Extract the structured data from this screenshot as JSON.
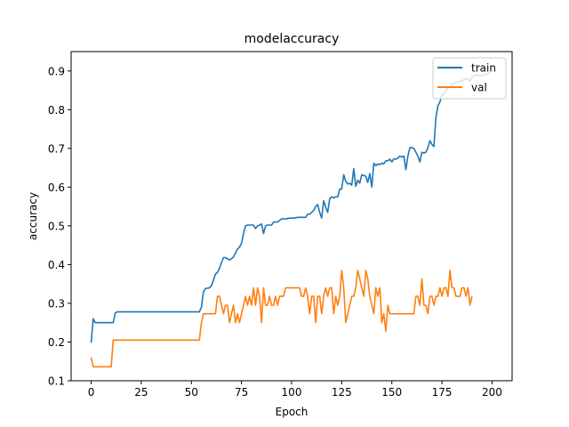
{
  "chart_data": {
    "type": "line",
    "title": "modelaccuracy",
    "xlabel": "Epoch",
    "ylabel": "accuracy",
    "xlim": [
      -10,
      210
    ],
    "ylim": [
      0.1,
      0.95
    ],
    "xticks": [
      0,
      25,
      50,
      75,
      100,
      125,
      150,
      175,
      200
    ],
    "yticks": [
      0.1,
      0.2,
      0.3,
      0.4,
      0.5,
      0.6,
      0.7,
      0.8,
      0.9
    ],
    "grid": false,
    "legend": "upper right",
    "series": [
      {
        "name": "train",
        "color": "#1f77b4",
        "points": [
          [
            0,
            0.198
          ],
          [
            1,
            0.26
          ],
          [
            2,
            0.25
          ],
          [
            5,
            0.25
          ],
          [
            10,
            0.25
          ],
          [
            11,
            0.25
          ],
          [
            12,
            0.275
          ],
          [
            13,
            0.278
          ],
          [
            20,
            0.278
          ],
          [
            30,
            0.278
          ],
          [
            40,
            0.278
          ],
          [
            50,
            0.278
          ],
          [
            54,
            0.278
          ],
          [
            55,
            0.29
          ],
          [
            56,
            0.33
          ],
          [
            57,
            0.338
          ],
          [
            59,
            0.34
          ],
          [
            60,
            0.345
          ],
          [
            61,
            0.36
          ],
          [
            62,
            0.375
          ],
          [
            63,
            0.38
          ],
          [
            64,
            0.39
          ],
          [
            65,
            0.405
          ],
          [
            66,
            0.418
          ],
          [
            67,
            0.418
          ],
          [
            68,
            0.415
          ],
          [
            69,
            0.412
          ],
          [
            70,
            0.415
          ],
          [
            71,
            0.42
          ],
          [
            72,
            0.43
          ],
          [
            73,
            0.44
          ],
          [
            74,
            0.445
          ],
          [
            75,
            0.455
          ],
          [
            76,
            0.48
          ],
          [
            77,
            0.5
          ],
          [
            78,
            0.502
          ],
          [
            80,
            0.502
          ],
          [
            81,
            0.502
          ],
          [
            82,
            0.493
          ],
          [
            83,
            0.5
          ],
          [
            84,
            0.502
          ],
          [
            85,
            0.505
          ],
          [
            86,
            0.48
          ],
          [
            87,
            0.5
          ],
          [
            88,
            0.502
          ],
          [
            90,
            0.502
          ],
          [
            91,
            0.51
          ],
          [
            93,
            0.51
          ],
          [
            95,
            0.518
          ],
          [
            97,
            0.518
          ],
          [
            99,
            0.52
          ],
          [
            101,
            0.52
          ],
          [
            103,
            0.522
          ],
          [
            105,
            0.522
          ],
          [
            107,
            0.522
          ],
          [
            108,
            0.53
          ],
          [
            109,
            0.53
          ],
          [
            110,
            0.535
          ],
          [
            111,
            0.54
          ],
          [
            112,
            0.55
          ],
          [
            113,
            0.555
          ],
          [
            114,
            0.535
          ],
          [
            115,
            0.52
          ],
          [
            116,
            0.565
          ],
          [
            117,
            0.548
          ],
          [
            118,
            0.535
          ],
          [
            119,
            0.57
          ],
          [
            120,
            0.575
          ],
          [
            121,
            0.572
          ],
          [
            122,
            0.575
          ],
          [
            123,
            0.575
          ],
          [
            124,
            0.595
          ],
          [
            125,
            0.595
          ],
          [
            126,
            0.632
          ],
          [
            127,
            0.615
          ],
          [
            128,
            0.608
          ],
          [
            129,
            0.61
          ],
          [
            130,
            0.605
          ],
          [
            131,
            0.648
          ],
          [
            132,
            0.602
          ],
          [
            133,
            0.618
          ],
          [
            134,
            0.61
          ],
          [
            135,
            0.632
          ],
          [
            136,
            0.63
          ],
          [
            137,
            0.628
          ],
          [
            138,
            0.612
          ],
          [
            139,
            0.635
          ],
          [
            140,
            0.6
          ],
          [
            141,
            0.662
          ],
          [
            142,
            0.655
          ],
          [
            143,
            0.66
          ],
          [
            144,
            0.658
          ],
          [
            145,
            0.662
          ],
          [
            146,
            0.66
          ],
          [
            147,
            0.668
          ],
          [
            148,
            0.668
          ],
          [
            149,
            0.672
          ],
          [
            150,
            0.665
          ],
          [
            151,
            0.673
          ],
          [
            152,
            0.672
          ],
          [
            153,
            0.675
          ],
          [
            154,
            0.68
          ],
          [
            155,
            0.678
          ],
          [
            156,
            0.68
          ],
          [
            157,
            0.645
          ],
          [
            158,
            0.68
          ],
          [
            159,
            0.702
          ],
          [
            160,
            0.702
          ],
          [
            161,
            0.7
          ],
          [
            162,
            0.69
          ],
          [
            163,
            0.68
          ],
          [
            164,
            0.665
          ],
          [
            165,
            0.69
          ],
          [
            166,
            0.688
          ],
          [
            167,
            0.69
          ],
          [
            168,
            0.702
          ],
          [
            169,
            0.72
          ],
          [
            170,
            0.71
          ],
          [
            171,
            0.705
          ],
          [
            172,
            0.78
          ],
          [
            173,
            0.81
          ],
          [
            174,
            0.82
          ],
          [
            175,
            0.84
          ],
          [
            176,
            0.84
          ],
          [
            177,
            0.85
          ],
          [
            178,
            0.858
          ],
          [
            179,
            0.86
          ],
          [
            180,
            0.865
          ],
          [
            182,
            0.87
          ],
          [
            185,
            0.875
          ],
          [
            187,
            0.88
          ],
          [
            188,
            0.88
          ],
          [
            189,
            0.873
          ],
          [
            190,
            0.885
          ],
          [
            192,
            0.89
          ],
          [
            195,
            0.888
          ],
          [
            199,
            0.895
          ]
        ]
      },
      {
        "name": "val",
        "color": "#ff7f0e",
        "points": [
          [
            0,
            0.16
          ],
          [
            1,
            0.136
          ],
          [
            2,
            0.136
          ],
          [
            5,
            0.136
          ],
          [
            10,
            0.136
          ],
          [
            11,
            0.205
          ],
          [
            15,
            0.205
          ],
          [
            20,
            0.205
          ],
          [
            30,
            0.205
          ],
          [
            40,
            0.205
          ],
          [
            50,
            0.205
          ],
          [
            54,
            0.205
          ],
          [
            55,
            0.25
          ],
          [
            56,
            0.273
          ],
          [
            58,
            0.273
          ],
          [
            60,
            0.273
          ],
          [
            62,
            0.273
          ],
          [
            63,
            0.318
          ],
          [
            64,
            0.318
          ],
          [
            65,
            0.295
          ],
          [
            66,
            0.273
          ],
          [
            67,
            0.295
          ],
          [
            68,
            0.295
          ],
          [
            69,
            0.25
          ],
          [
            70,
            0.273
          ],
          [
            71,
            0.295
          ],
          [
            72,
            0.25
          ],
          [
            73,
            0.273
          ],
          [
            74,
            0.25
          ],
          [
            75,
            0.273
          ],
          [
            76,
            0.295
          ],
          [
            77,
            0.318
          ],
          [
            78,
            0.295
          ],
          [
            79,
            0.318
          ],
          [
            80,
            0.295
          ],
          [
            81,
            0.34
          ],
          [
            82,
            0.295
          ],
          [
            83,
            0.34
          ],
          [
            84,
            0.318
          ],
          [
            85,
            0.25
          ],
          [
            86,
            0.34
          ],
          [
            87,
            0.295
          ],
          [
            88,
            0.295
          ],
          [
            89,
            0.318
          ],
          [
            90,
            0.295
          ],
          [
            91,
            0.295
          ],
          [
            92,
            0.318
          ],
          [
            93,
            0.295
          ],
          [
            94,
            0.318
          ],
          [
            95,
            0.318
          ],
          [
            96,
            0.318
          ],
          [
            97,
            0.34
          ],
          [
            98,
            0.34
          ],
          [
            100,
            0.34
          ],
          [
            102,
            0.34
          ],
          [
            104,
            0.34
          ],
          [
            105,
            0.318
          ],
          [
            106,
            0.318
          ],
          [
            107,
            0.34
          ],
          [
            108,
            0.318
          ],
          [
            109,
            0.273
          ],
          [
            110,
            0.318
          ],
          [
            111,
            0.318
          ],
          [
            112,
            0.25
          ],
          [
            113,
            0.318
          ],
          [
            114,
            0.318
          ],
          [
            115,
            0.273
          ],
          [
            116,
            0.318
          ],
          [
            117,
            0.34
          ],
          [
            118,
            0.318
          ],
          [
            119,
            0.34
          ],
          [
            120,
            0.34
          ],
          [
            121,
            0.273
          ],
          [
            122,
            0.318
          ],
          [
            123,
            0.295
          ],
          [
            124,
            0.318
          ],
          [
            125,
            0.385
          ],
          [
            126,
            0.34
          ],
          [
            127,
            0.25
          ],
          [
            128,
            0.273
          ],
          [
            129,
            0.295
          ],
          [
            130,
            0.318
          ],
          [
            131,
            0.318
          ],
          [
            132,
            0.34
          ],
          [
            133,
            0.385
          ],
          [
            134,
            0.363
          ],
          [
            135,
            0.34
          ],
          [
            136,
            0.318
          ],
          [
            137,
            0.385
          ],
          [
            138,
            0.363
          ],
          [
            139,
            0.318
          ],
          [
            140,
            0.295
          ],
          [
            141,
            0.273
          ],
          [
            142,
            0.34
          ],
          [
            143,
            0.318
          ],
          [
            144,
            0.34
          ],
          [
            145,
            0.25
          ],
          [
            146,
            0.273
          ],
          [
            147,
            0.228
          ],
          [
            148,
            0.295
          ],
          [
            149,
            0.273
          ],
          [
            150,
            0.273
          ],
          [
            155,
            0.273
          ],
          [
            160,
            0.273
          ],
          [
            161,
            0.273
          ],
          [
            162,
            0.318
          ],
          [
            163,
            0.318
          ],
          [
            164,
            0.295
          ],
          [
            165,
            0.363
          ],
          [
            166,
            0.295
          ],
          [
            167,
            0.295
          ],
          [
            168,
            0.273
          ],
          [
            169,
            0.318
          ],
          [
            170,
            0.318
          ],
          [
            171,
            0.295
          ],
          [
            172,
            0.318
          ],
          [
            173,
            0.318
          ],
          [
            174,
            0.34
          ],
          [
            175,
            0.318
          ],
          [
            176,
            0.34
          ],
          [
            177,
            0.34
          ],
          [
            178,
            0.318
          ],
          [
            179,
            0.385
          ],
          [
            180,
            0.34
          ],
          [
            181,
            0.34
          ],
          [
            182,
            0.318
          ],
          [
            183,
            0.318
          ],
          [
            184,
            0.318
          ],
          [
            185,
            0.34
          ],
          [
            186,
            0.34
          ],
          [
            187,
            0.318
          ],
          [
            188,
            0.34
          ],
          [
            189,
            0.295
          ],
          [
            190,
            0.318
          ]
        ]
      }
    ]
  }
}
